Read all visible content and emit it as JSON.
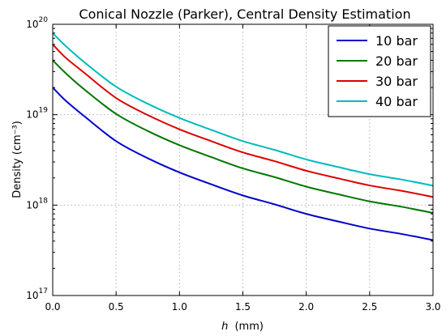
{
  "chart_data": {
    "type": "line",
    "title": "Conical Nozzle (Parker), Central Density Estimation",
    "xlabel_var": "h",
    "xlabel_unit": "(mm)",
    "ylabel": "Density (cm⁻³)",
    "xlim": [
      0.0,
      3.0
    ],
    "ylim": [
      1e+17,
      1e+20
    ],
    "yscale": "log",
    "grid": true,
    "legend_position": "top-right",
    "x_ticks": [
      "0.0",
      "0.5",
      "1.0",
      "1.5",
      "2.0",
      "2.5",
      "3.0"
    ],
    "y_ticks": [
      {
        "base": "10",
        "exp": "17"
      },
      {
        "base": "10",
        "exp": "18"
      },
      {
        "base": "10",
        "exp": "19"
      },
      {
        "base": "10",
        "exp": "20"
      }
    ],
    "x": [
      0.0,
      0.1,
      0.25,
      0.5,
      0.75,
      1.0,
      1.25,
      1.5,
      1.75,
      2.0,
      2.25,
      2.5,
      2.75,
      3.0
    ],
    "series": [
      {
        "name": "10 bar",
        "color": "#0000cc",
        "values": [
          2e+19,
          1.44e+19,
          9.6e+18,
          5.1e+18,
          3.3e+18,
          2.3e+18,
          1.7e+18,
          1.28e+18,
          1.02e+18,
          8e+17,
          6.6e+17,
          5.5e+17,
          4.8e+17,
          4.1e+17
        ]
      },
      {
        "name": "20 bar",
        "color": "#007700",
        "values": [
          4e+19,
          2.9e+19,
          1.9e+19,
          1.02e+19,
          6.6e+18,
          4.6e+18,
          3.4e+18,
          2.55e+18,
          2.04e+18,
          1.6e+18,
          1.32e+18,
          1.1e+18,
          9.6e+17,
          8.2e+17
        ]
      },
      {
        "name": "30 bar",
        "color": "#dd0000",
        "values": [
          6e+19,
          4.3e+19,
          2.9e+19,
          1.53e+19,
          9.9e+18,
          6.9e+18,
          5.1e+18,
          3.83e+18,
          3.06e+18,
          2.4e+18,
          1.98e+18,
          1.65e+18,
          1.44e+18,
          1.23e+18
        ]
      },
      {
        "name": "40 bar",
        "color": "#00bbbb",
        "values": [
          8e+19,
          5.8e+19,
          3.8e+19,
          2.04e+19,
          1.32e+19,
          9.2e+18,
          6.8e+18,
          5.1e+18,
          4.08e+18,
          3.2e+18,
          2.64e+18,
          2.2e+18,
          1.92e+18,
          1.64e+18
        ]
      }
    ]
  }
}
